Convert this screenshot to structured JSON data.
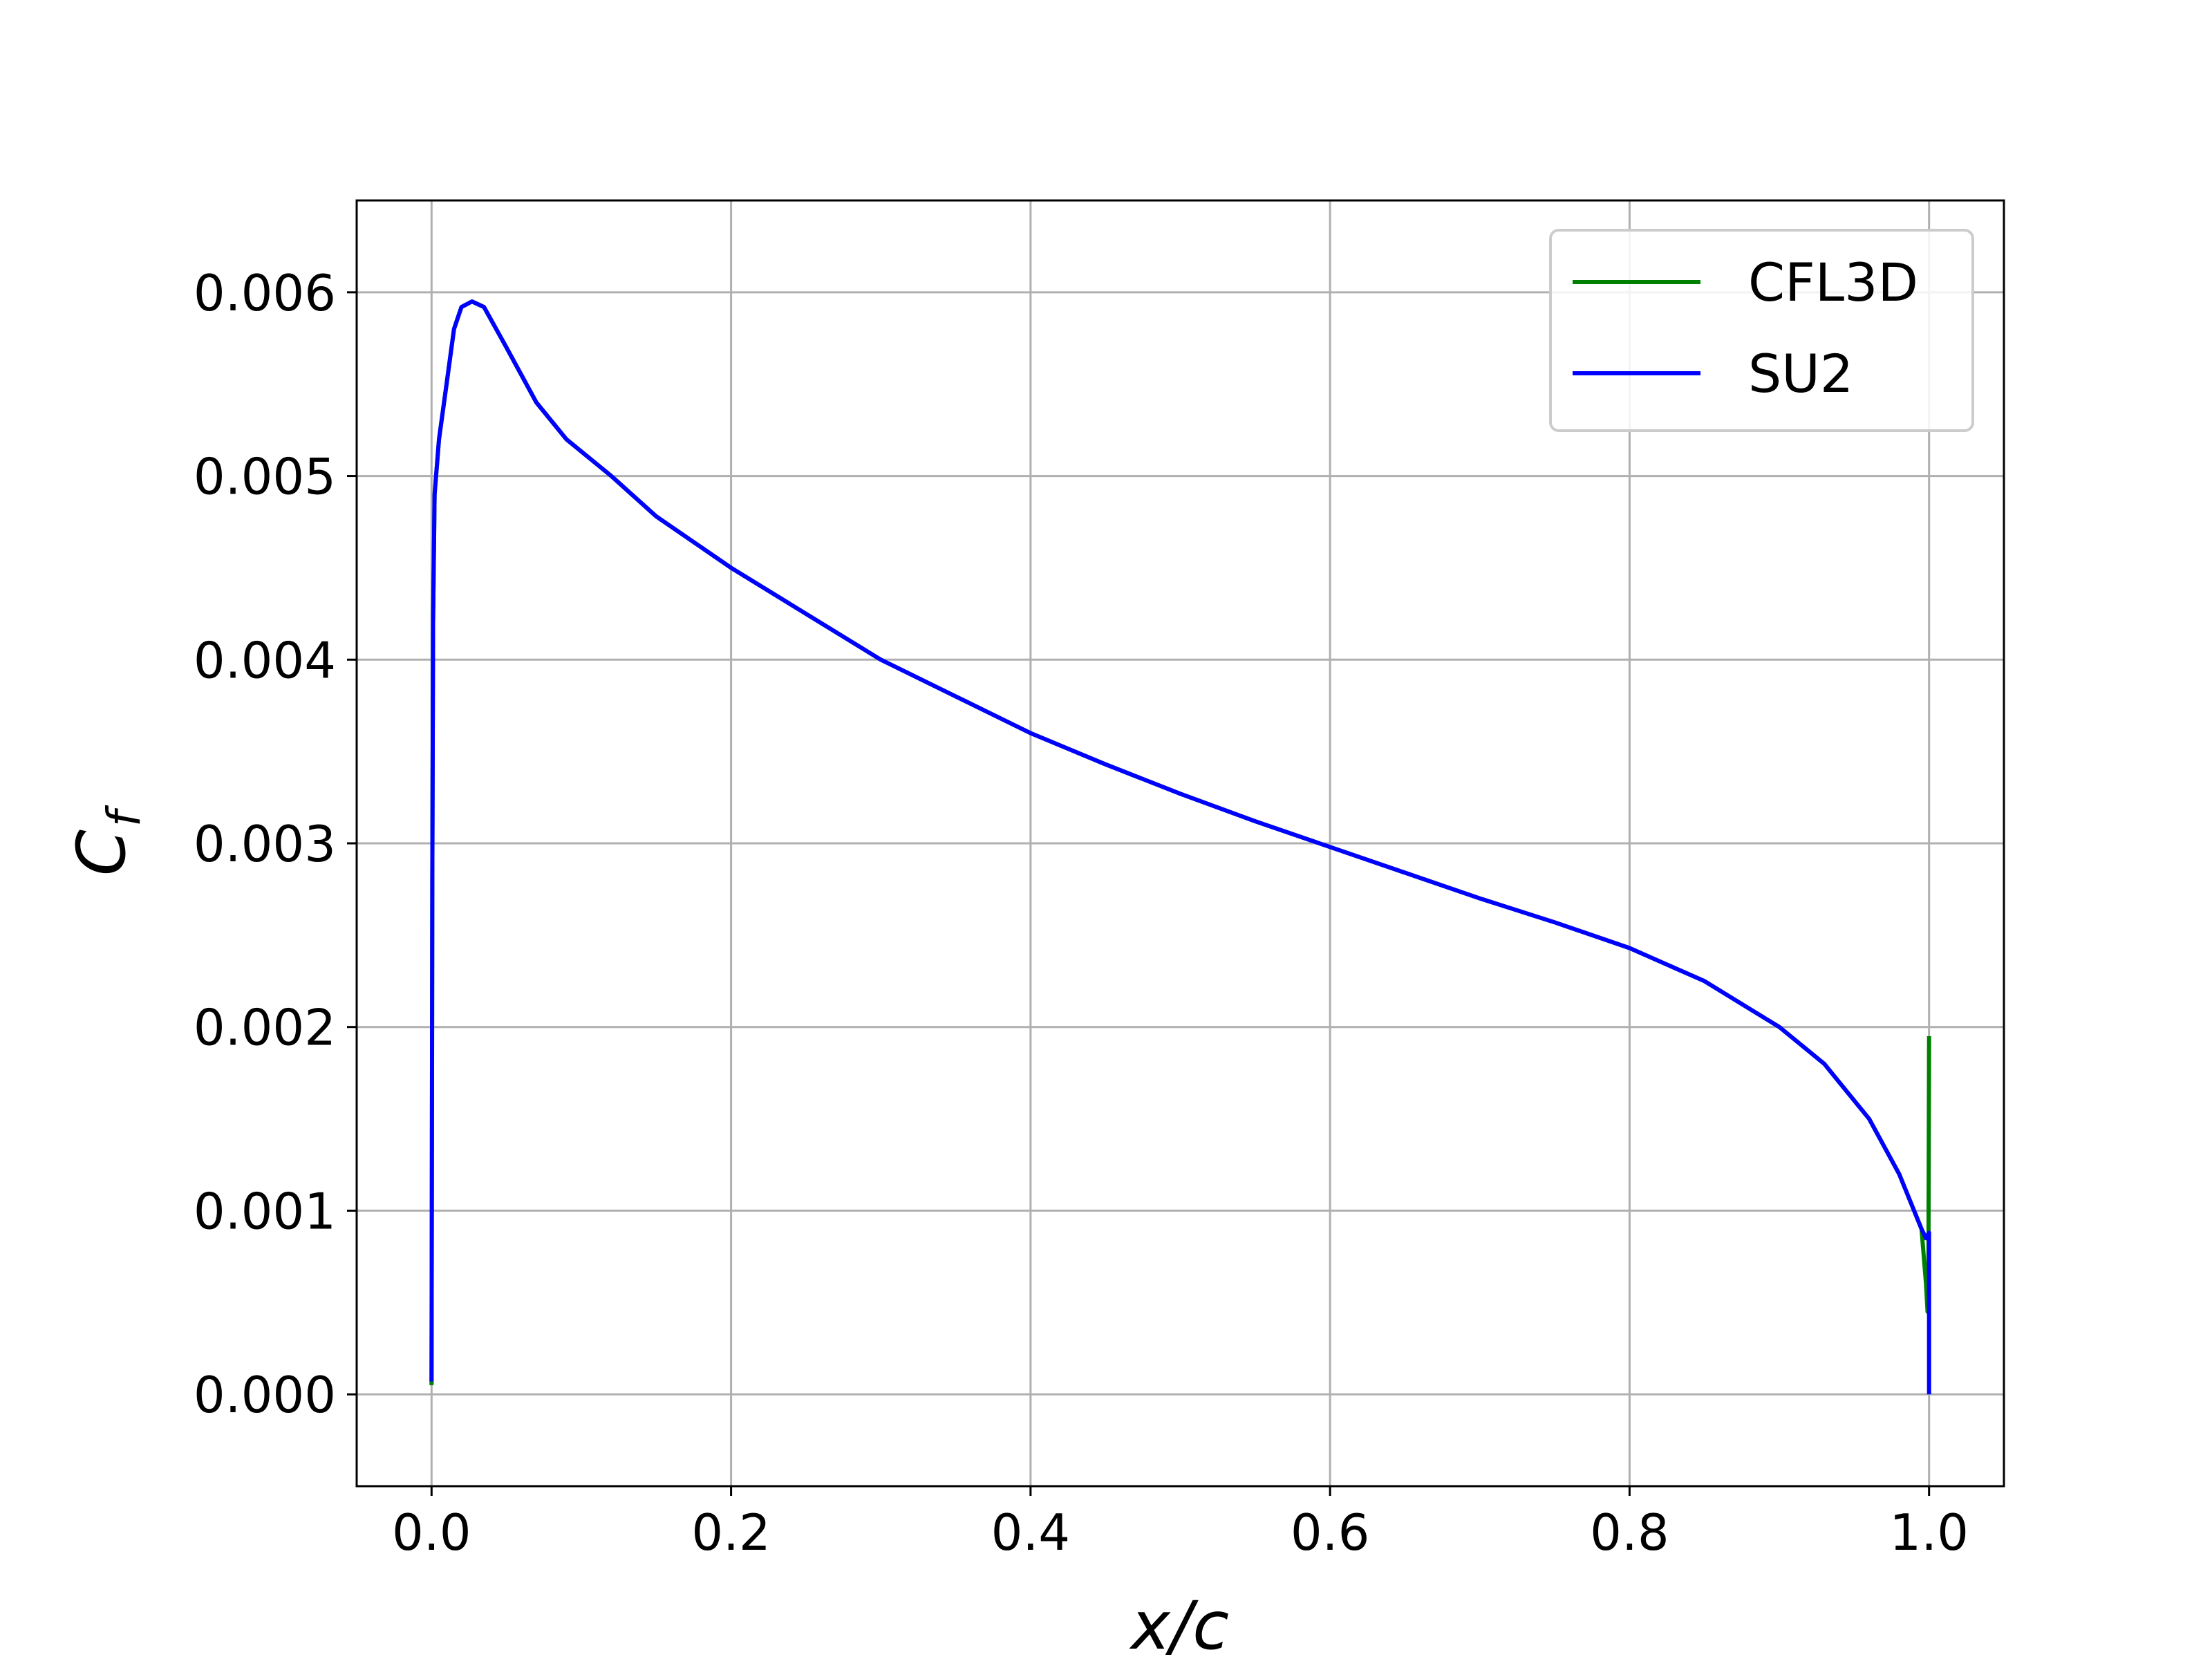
{
  "chart_data": {
    "type": "line",
    "xlabel": "x/c",
    "ylabel": "Cf",
    "xlim": [
      -0.05,
      1.05
    ],
    "ylim": [
      -0.0005,
      0.0065
    ],
    "x_ticks": [
      0.0,
      0.2,
      0.4,
      0.6,
      0.8,
      1.0
    ],
    "x_tick_labels": [
      "0.0",
      "0.2",
      "0.4",
      "0.6",
      "0.8",
      "1.0"
    ],
    "y_ticks": [
      0.0,
      0.001,
      0.002,
      0.003,
      0.004,
      0.005,
      0.006
    ],
    "y_tick_labels": [
      "0.000",
      "0.001",
      "0.002",
      "0.003",
      "0.004",
      "0.005",
      "0.006"
    ],
    "grid": true,
    "legend_position": "top-right",
    "series": [
      {
        "name": "CFL3D",
        "color": "#008000",
        "points": [
          [
            0.0,
            5e-05
          ],
          [
            0.0005,
            0.0028
          ],
          [
            0.001,
            0.0042
          ],
          [
            0.002,
            0.0049
          ],
          [
            0.005,
            0.0052
          ],
          [
            0.01,
            0.0055
          ],
          [
            0.015,
            0.0058
          ],
          [
            0.02,
            0.00592
          ],
          [
            0.027,
            0.00595
          ],
          [
            0.035,
            0.00592
          ],
          [
            0.05,
            0.0057
          ],
          [
            0.07,
            0.0054
          ],
          [
            0.09,
            0.0052
          ],
          [
            0.12,
            0.005
          ],
          [
            0.15,
            0.00478
          ],
          [
            0.2,
            0.0045
          ],
          [
            0.25,
            0.00425
          ],
          [
            0.3,
            0.004
          ],
          [
            0.35,
            0.0038
          ],
          [
            0.4,
            0.0036
          ],
          [
            0.45,
            0.00343
          ],
          [
            0.5,
            0.00327
          ],
          [
            0.55,
            0.00312
          ],
          [
            0.6,
            0.00298
          ],
          [
            0.65,
            0.00284
          ],
          [
            0.7,
            0.0027
          ],
          [
            0.75,
            0.00257
          ],
          [
            0.8,
            0.00243
          ],
          [
            0.85,
            0.00225
          ],
          [
            0.9,
            0.002
          ],
          [
            0.93,
            0.0018
          ],
          [
            0.96,
            0.0015
          ],
          [
            0.98,
            0.0012
          ],
          [
            0.99,
            0.001
          ],
          [
            0.995,
            0.0009
          ],
          [
            0.998,
            0.0006
          ],
          [
            0.999,
            0.00045
          ],
          [
            0.9995,
            0.00045
          ],
          [
            1.0,
            0.00195
          ]
        ]
      },
      {
        "name": "SU2",
        "color": "#0000ff",
        "points": [
          [
            0.0,
            7e-05
          ],
          [
            0.0005,
            0.0028
          ],
          [
            0.001,
            0.0042
          ],
          [
            0.002,
            0.0049
          ],
          [
            0.005,
            0.0052
          ],
          [
            0.01,
            0.0055
          ],
          [
            0.015,
            0.0058
          ],
          [
            0.02,
            0.00592
          ],
          [
            0.027,
            0.00595
          ],
          [
            0.035,
            0.00592
          ],
          [
            0.05,
            0.0057
          ],
          [
            0.07,
            0.0054
          ],
          [
            0.09,
            0.0052
          ],
          [
            0.12,
            0.005
          ],
          [
            0.15,
            0.00478
          ],
          [
            0.2,
            0.0045
          ],
          [
            0.25,
            0.00425
          ],
          [
            0.3,
            0.004
          ],
          [
            0.35,
            0.0038
          ],
          [
            0.4,
            0.0036
          ],
          [
            0.45,
            0.00343
          ],
          [
            0.5,
            0.00327
          ],
          [
            0.55,
            0.00312
          ],
          [
            0.6,
            0.00298
          ],
          [
            0.65,
            0.00284
          ],
          [
            0.7,
            0.0027
          ],
          [
            0.75,
            0.00257
          ],
          [
            0.8,
            0.00243
          ],
          [
            0.85,
            0.00225
          ],
          [
            0.9,
            0.002
          ],
          [
            0.93,
            0.0018
          ],
          [
            0.96,
            0.0015
          ],
          [
            0.98,
            0.0012
          ],
          [
            0.99,
            0.001
          ],
          [
            0.995,
            0.0009
          ],
          [
            0.998,
            0.00085
          ],
          [
            1.0,
            0.00088
          ],
          [
            1.0,
            0.0
          ]
        ]
      }
    ]
  }
}
